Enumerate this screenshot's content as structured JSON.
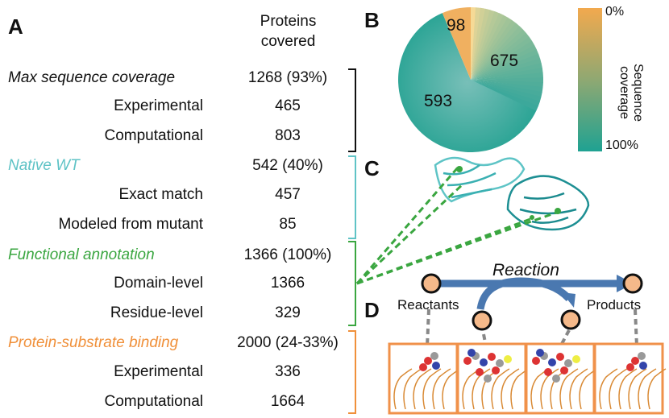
{
  "panels": {
    "a": "A",
    "b": "B",
    "c": "C",
    "d": "D"
  },
  "table": {
    "header": "Proteins covered",
    "rows": [
      {
        "label": "Max sequence coverage",
        "value": "1268 (93%)",
        "heading": true,
        "color": "#111111"
      },
      {
        "label": "Experimental",
        "value": "465"
      },
      {
        "label": "Computational",
        "value": "803"
      },
      {
        "label": "Native WT",
        "value": "542 (40%)",
        "heading": true,
        "color": "#5fc3c6"
      },
      {
        "label": "Exact match",
        "value": "457"
      },
      {
        "label": "Modeled from mutant",
        "value": "85"
      },
      {
        "label": "Functional annotation",
        "value": "1366 (100%)",
        "heading": true,
        "color": "#3aa640"
      },
      {
        "label": "Domain-level",
        "value": "1366"
      },
      {
        "label": "Residue-level",
        "value": "329"
      },
      {
        "label": "Protein-substrate binding",
        "value": "2000 (24-33%)",
        "heading": true,
        "color": "#f0903a"
      },
      {
        "label": "Experimental",
        "value": "336"
      },
      {
        "label": "Computational",
        "value": "1664"
      }
    ]
  },
  "pie": {
    "slices": [
      {
        "label": "98",
        "value": 98,
        "color": "#f0b060"
      },
      {
        "label": "675",
        "value": 675,
        "color": "gradient"
      },
      {
        "label": "593",
        "value": 593,
        "color": "#2aa596"
      }
    ],
    "colorbar": {
      "title": "Sequence coverage",
      "min_label": "0%",
      "max_label": "100%",
      "min_color": "#f2a94e",
      "max_color": "#1fa292"
    }
  },
  "reaction": {
    "title": "Reaction",
    "reactants": "Reactants",
    "products": "Products",
    "arrow_color": "#4a78b0",
    "node_color": "#f5b98a",
    "frame_color": "#f0914a"
  }
}
